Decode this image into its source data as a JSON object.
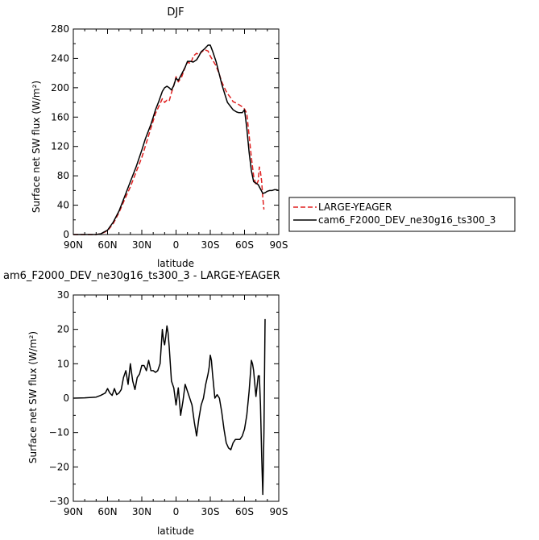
{
  "chart_data": [
    {
      "type": "line",
      "title": "DJF",
      "xlabel": "latitude",
      "ylabel": "Surface net SW flux (W/m²)",
      "xlim": [
        90,
        -90
      ],
      "ylim": [
        0,
        280
      ],
      "x_ticks": [
        90,
        60,
        30,
        0,
        -30,
        -60,
        -90
      ],
      "x_tick_labels": [
        "90N",
        "60N",
        "30N",
        "0",
        "30S",
        "60S",
        "90S"
      ],
      "y_ticks": [
        0,
        40,
        80,
        120,
        160,
        200,
        240,
        280
      ],
      "y_tick_labels": [
        "0",
        "40",
        "80",
        "120",
        "160",
        "200",
        "240",
        "280"
      ],
      "legend": "right",
      "series": [
        {
          "name": "LARGE-YEAGER",
          "color": "#e02020",
          "dash": "dashed",
          "x": [
            90,
            80,
            70,
            66,
            60,
            55,
            50,
            45,
            40,
            35,
            30,
            27,
            25,
            22,
            20,
            18,
            15,
            12,
            10,
            8,
            6,
            4,
            2,
            0,
            -2,
            -5,
            -8,
            -10,
            -13,
            -15,
            -18,
            -20,
            -22,
            -25,
            -28,
            -30,
            -32,
            -35,
            -38,
            -40,
            -43,
            -45,
            -48,
            -50,
            -53,
            -55,
            -58,
            -60,
            -62,
            -64,
            -66,
            -68,
            -70,
            -72,
            -73,
            -74,
            -75,
            -76,
            -77
          ],
          "y": [
            0,
            0,
            0,
            1,
            5,
            15,
            30,
            48,
            65,
            85,
            105,
            120,
            130,
            145,
            155,
            165,
            175,
            185,
            180,
            183,
            182,
            193,
            203,
            215,
            208,
            215,
            228,
            235,
            233,
            243,
            247,
            245,
            248,
            252,
            250,
            243,
            238,
            230,
            218,
            208,
            198,
            192,
            186,
            181,
            179,
            177,
            174,
            171,
            165,
            135,
            105,
            80,
            67,
            73,
            92,
            85,
            72,
            50,
            34
          ]
        },
        {
          "name": "cam6_F2000_DEV_ne30g16_ts300_3",
          "color": "#000000",
          "dash": "solid",
          "x": [
            90,
            80,
            70,
            66,
            60,
            55,
            50,
            45,
            40,
            35,
            30,
            27,
            25,
            22,
            20,
            18,
            15,
            12,
            10,
            8,
            6,
            4,
            2,
            0,
            -2,
            -5,
            -8,
            -10,
            -13,
            -15,
            -18,
            -20,
            -22,
            -25,
            -28,
            -30,
            -32,
            -35,
            -38,
            -40,
            -43,
            -45,
            -48,
            -50,
            -53,
            -55,
            -58,
            -60,
            -62,
            -64,
            -66,
            -68,
            -70,
            -72,
            -74,
            -76,
            -78,
            -80,
            -82,
            -84,
            -86,
            -88,
            -90
          ],
          "y": [
            0,
            0,
            0,
            1,
            6,
            17,
            32,
            52,
            72,
            92,
            115,
            130,
            138,
            150,
            160,
            170,
            182,
            195,
            200,
            202,
            200,
            197,
            203,
            213,
            210,
            219,
            228,
            236,
            236,
            235,
            238,
            243,
            249,
            253,
            258,
            258,
            250,
            236,
            218,
            205,
            190,
            180,
            174,
            170,
            167,
            166,
            166,
            170,
            145,
            112,
            87,
            72,
            70,
            68,
            62,
            56,
            57,
            59,
            60,
            60,
            61,
            61,
            60
          ]
        }
      ]
    },
    {
      "type": "line",
      "title": "am6_F2000_DEV_ne30g16_ts300_3 - LARGE-YEAGER",
      "xlabel": "latitude",
      "ylabel": "Surface net SW flux (W/m²)",
      "xlim": [
        90,
        -90
      ],
      "ylim": [
        -30,
        30
      ],
      "x_ticks": [
        90,
        60,
        30,
        0,
        -30,
        -60,
        -90
      ],
      "x_tick_labels": [
        "90N",
        "60N",
        "30N",
        "0",
        "30S",
        "60S",
        "90S"
      ],
      "y_ticks": [
        -30,
        -20,
        -10,
        0,
        10,
        20,
        30
      ],
      "y_tick_labels": [
        "−30",
        "−20",
        "−10",
        "0",
        "10",
        "20",
        "30"
      ],
      "series": [
        {
          "color": "#000000",
          "dash": "solid",
          "x": [
            90,
            80,
            70,
            66,
            62,
            60,
            58,
            56,
            54,
            52,
            50,
            48,
            46,
            44,
            42,
            40,
            38,
            36,
            34,
            32,
            30,
            28,
            26,
            24,
            22,
            20,
            18,
            16,
            14,
            12,
            11,
            10,
            9,
            8,
            7,
            6,
            4,
            2,
            0,
            -2,
            -4,
            -6,
            -8,
            -10,
            -12,
            -14,
            -16,
            -18,
            -20,
            -22,
            -24,
            -26,
            -28,
            -29,
            -30,
            -31,
            -32,
            -34,
            -36,
            -38,
            -40,
            -42,
            -44,
            -46,
            -48,
            -50,
            -52,
            -54,
            -56,
            -58,
            -60,
            -62,
            -64,
            -66,
            -67,
            -68,
            -69,
            -70,
            -71,
            -72,
            -73,
            -74,
            -75,
            -76,
            -77,
            -78
          ],
          "y": [
            0,
            0.1,
            0.3,
            0.8,
            1.5,
            2.8,
            1.5,
            0.8,
            2.8,
            1.0,
            1.5,
            2.5,
            6,
            8,
            4,
            10,
            5,
            2.5,
            6,
            7,
            9.5,
            9.5,
            8,
            11,
            8,
            8,
            7.5,
            8,
            10,
            20,
            17,
            15.5,
            18,
            21,
            19,
            15,
            5,
            3,
            -2,
            3,
            -5,
            -1,
            4,
            2,
            0,
            -2,
            -7,
            -11,
            -6,
            -2,
            0,
            4,
            7,
            9,
            12.5,
            11,
            7,
            0,
            1,
            0,
            -4,
            -9,
            -13,
            -14.5,
            -15,
            -13,
            -12,
            -12,
            -12,
            -11,
            -9,
            -5,
            2,
            11,
            10,
            8,
            4,
            0.5,
            3.5,
            6.5,
            6.5,
            -2,
            -17,
            -28,
            -10,
            23
          ]
        }
      ]
    }
  ]
}
